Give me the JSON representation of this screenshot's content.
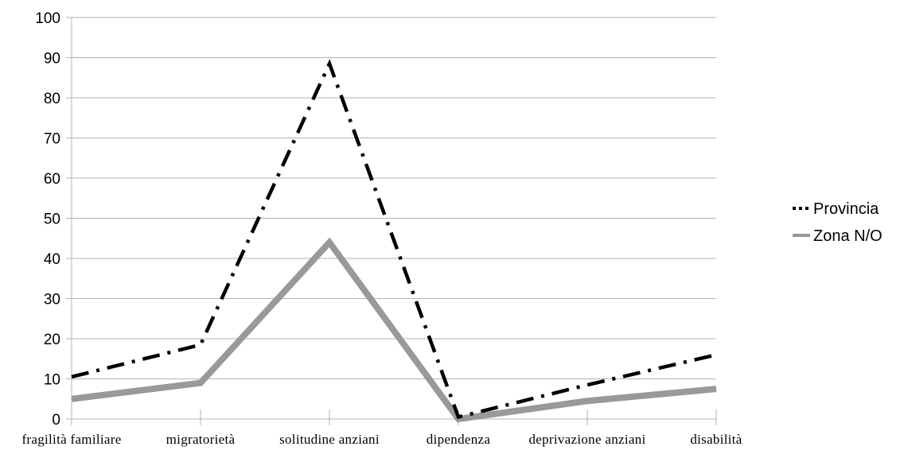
{
  "chart_data": {
    "type": "line",
    "title": "",
    "xlabel": "",
    "ylabel": "",
    "categories": [
      "fragilità familiare",
      "migratorietà",
      "solitudine anziani",
      "dipendenza",
      "deprivazione anziani",
      "disabilità"
    ],
    "ylim": [
      0,
      100
    ],
    "yticks": [
      0,
      10,
      20,
      30,
      40,
      50,
      60,
      70,
      80,
      90,
      100
    ],
    "grid": true,
    "legend_position": "right",
    "series": [
      {
        "name": "Provincia",
        "values": [
          10.5,
          18.5,
          88.5,
          0.5,
          8.5,
          16
        ],
        "color": "#000000",
        "style": "dash-dot"
      },
      {
        "name": "Zona N/O",
        "values": [
          5,
          9,
          44,
          0,
          4.5,
          7.5
        ],
        "color": "#999999",
        "style": "solid-thick"
      }
    ]
  }
}
